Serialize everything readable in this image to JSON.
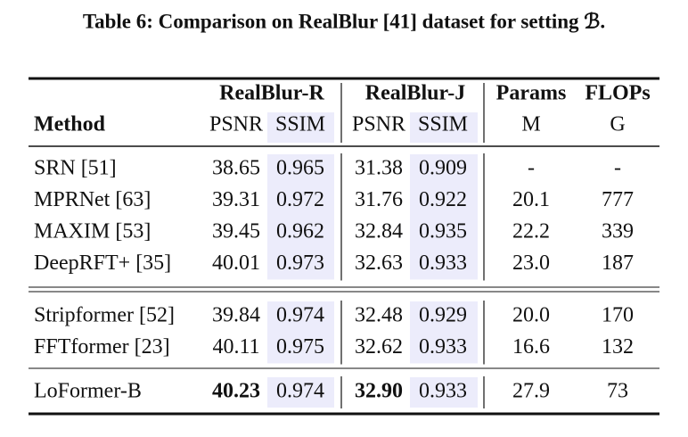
{
  "caption": "Table 6: Comparison on RealBlur [41] dataset for setting ℬ.",
  "header": {
    "method": "Method",
    "groups": [
      "RealBlur-R",
      "RealBlur-J",
      "Params",
      "FLOPs"
    ],
    "sub": [
      "PSNR",
      "SSIM",
      "PSNR",
      "SSIM",
      "M",
      "G"
    ]
  },
  "sections": [
    {
      "rows": [
        {
          "name": "SRN",
          "ref": "[51]",
          "cells": [
            "38.65",
            "0.965",
            "31.38",
            "0.909",
            "-",
            "-"
          ]
        },
        {
          "name": "MPRNet",
          "ref": "[63]",
          "cells": [
            "39.31",
            "0.972",
            "31.76",
            "0.922",
            "20.1",
            "777"
          ]
        },
        {
          "name": "MAXIM",
          "ref": "[53]",
          "cells": [
            "39.45",
            "0.962",
            "32.84",
            "0.935",
            "22.2",
            "339"
          ]
        },
        {
          "name": "DeepRFT+",
          "ref": "[35]",
          "cells": [
            "40.01",
            "0.973",
            "32.63",
            "0.933",
            "23.0",
            "187"
          ]
        }
      ]
    },
    {
      "name_color": "#3a3ad6",
      "rows": [
        {
          "name": "Stripformer",
          "ref": "[52]",
          "cells": [
            "39.84",
            "0.974",
            "32.48",
            "0.929",
            "20.0",
            "170"
          ]
        },
        {
          "name": "FFTformer",
          "ref": "[23]",
          "cells": [
            "40.11",
            "0.975",
            "32.62",
            "0.933",
            "16.6",
            "132"
          ]
        }
      ]
    },
    {
      "name_color": "#3a3ad6",
      "rows": [
        {
          "name": "LoFormer-B",
          "bold_cells": [
            0,
            2
          ],
          "cells": [
            "40.23",
            "0.974",
            "32.90",
            "0.933",
            "27.9",
            "73"
          ]
        }
      ]
    }
  ]
}
